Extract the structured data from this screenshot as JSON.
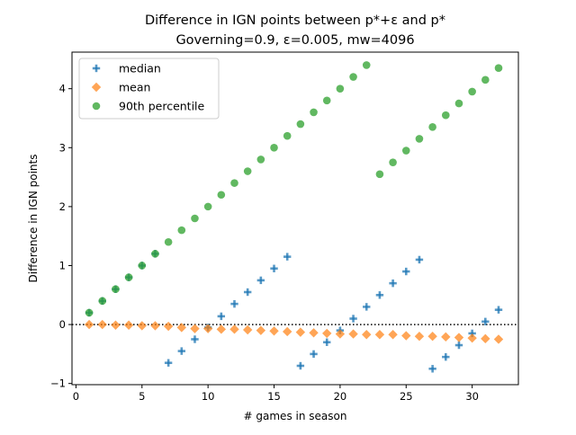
{
  "chart_data": {
    "type": "scatter",
    "title": "Difference in IGN points between p*+ε and p*",
    "subtitle": "Governing=0.9, ε=0.005, mw=4096",
    "xlabel": "# games in season",
    "ylabel": "Difference in IGN points",
    "xlim": [
      -0.3,
      33.5
    ],
    "ylim": [
      -1.02,
      4.62
    ],
    "xticks": [
      0,
      5,
      10,
      15,
      20,
      25,
      30
    ],
    "yticks": [
      -1,
      0,
      1,
      2,
      3,
      4
    ],
    "xtick_labels": [
      "0",
      "5",
      "10",
      "15",
      "20",
      "25",
      "30"
    ],
    "ytick_labels": [
      "−1",
      "0",
      "1",
      "2",
      "3",
      "4"
    ],
    "reference_line": {
      "y": 0,
      "style": "dotted",
      "color": "#000000"
    },
    "legend": {
      "position": "top-left"
    },
    "grid": false,
    "series": [
      {
        "name": "median",
        "marker": "plus",
        "color": "#1f77b4",
        "x": [
          1,
          2,
          3,
          4,
          5,
          6,
          7,
          8,
          9,
          10,
          11,
          12,
          13,
          14,
          15,
          16,
          17,
          18,
          19,
          20,
          21,
          22,
          23,
          24,
          25,
          26,
          27,
          28,
          29,
          30,
          31,
          32
        ],
        "y": [
          0.2,
          0.4,
          0.6,
          0.8,
          1.0,
          1.2,
          -0.65,
          -0.45,
          -0.25,
          -0.05,
          0.14,
          0.35,
          0.55,
          0.75,
          0.95,
          1.15,
          -0.7,
          -0.5,
          -0.3,
          -0.1,
          0.1,
          0.3,
          0.5,
          0.7,
          0.9,
          1.1,
          -0.75,
          -0.55,
          -0.35,
          -0.15,
          0.05,
          0.25
        ]
      },
      {
        "name": "mean",
        "marker": "diamond",
        "color": "#ff7f0e",
        "x": [
          1,
          2,
          3,
          4,
          5,
          6,
          7,
          8,
          9,
          10,
          11,
          12,
          13,
          14,
          15,
          16,
          17,
          18,
          19,
          20,
          21,
          22,
          23,
          24,
          25,
          26,
          27,
          28,
          29,
          30,
          31,
          32
        ],
        "y": [
          0.0,
          0.0,
          -0.01,
          -0.01,
          -0.02,
          -0.02,
          -0.03,
          -0.05,
          -0.07,
          -0.07,
          -0.08,
          -0.08,
          -0.09,
          -0.1,
          -0.11,
          -0.12,
          -0.13,
          -0.14,
          -0.15,
          -0.16,
          -0.16,
          -0.17,
          -0.17,
          -0.17,
          -0.19,
          -0.2,
          -0.2,
          -0.21,
          -0.22,
          -0.23,
          -0.24,
          -0.25
        ]
      },
      {
        "name": "90th percentile",
        "marker": "circle",
        "color": "#2ca02c",
        "x": [
          1,
          2,
          3,
          4,
          5,
          6,
          7,
          8,
          9,
          10,
          11,
          12,
          13,
          14,
          15,
          16,
          17,
          18,
          19,
          20,
          21,
          22,
          23,
          24,
          25,
          26,
          27,
          28,
          29,
          30,
          31,
          32
        ],
        "y": [
          0.2,
          0.4,
          0.6,
          0.8,
          1.0,
          1.2,
          1.4,
          1.6,
          1.8,
          2.0,
          2.2,
          2.4,
          2.6,
          2.8,
          3.0,
          3.2,
          3.4,
          3.6,
          3.8,
          4.0,
          4.2,
          4.4,
          2.55,
          2.75,
          2.95,
          3.15,
          3.35,
          3.55,
          3.75,
          3.95,
          4.15,
          4.35
        ]
      }
    ]
  }
}
